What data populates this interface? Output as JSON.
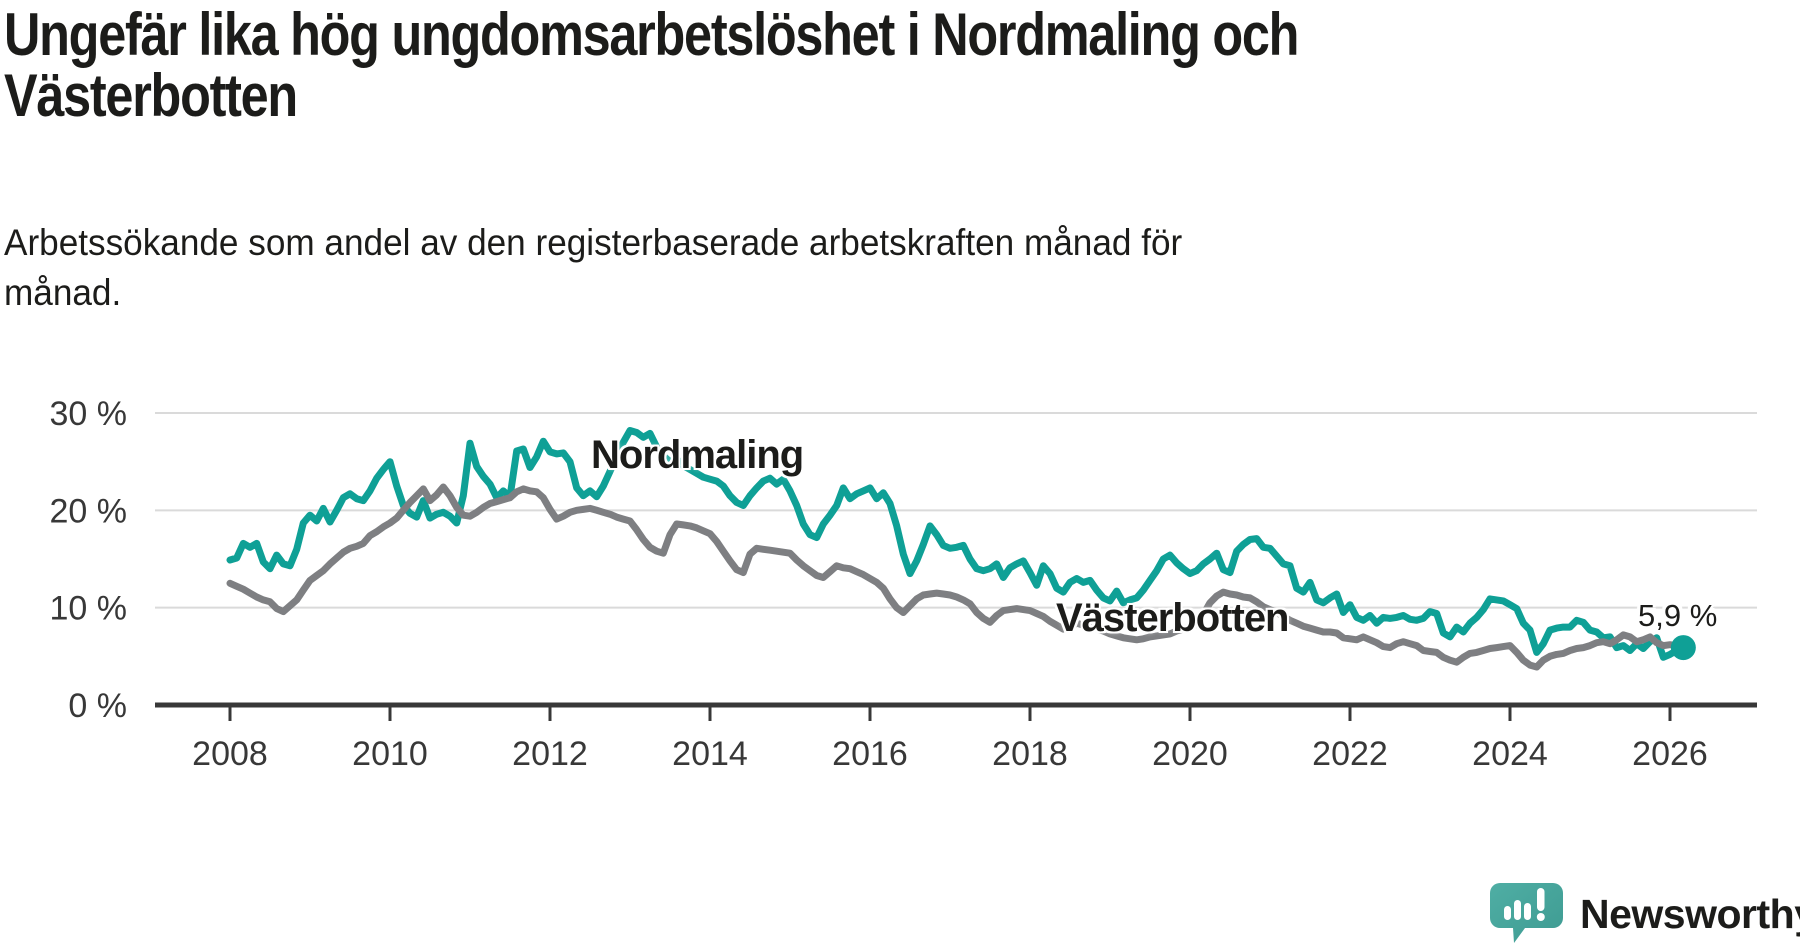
{
  "header": {
    "title_lines": [
      "Ungefär lika hög ungdomsarbetslöshet i Nordmaling och",
      "Västerbotten"
    ],
    "subtitle_lines": [
      "Arbetssökande som andel av den registerbaserade arbetskraften månad för",
      "månad."
    ]
  },
  "footer": {
    "brand": "Newsworthy",
    "brand_color": "#3FA099",
    "logo_icon": "newsworthy-speech-bubble-bar-chart-icon"
  },
  "chart_data": {
    "type": "line",
    "title": "Ungefär lika hög ungdomsarbetslöshet i Nordmaling och Västerbotten",
    "subtitle": "Arbetssökande som andel av den registerbaserade arbetskraften månad för månad.",
    "unit": "percent",
    "frequency": "monthly",
    "x_axis": {
      "ticks": [
        "2008",
        "2010",
        "2012",
        "2014",
        "2016",
        "2018",
        "2020",
        "2022",
        "2024",
        "2026"
      ],
      "tick_values": [
        2008,
        2010,
        2012,
        2014,
        2016,
        2018,
        2020,
        2022,
        2024,
        2026
      ]
    },
    "y_axis": {
      "tick_labels": [
        "30 %",
        "20 %",
        "10 %",
        "0 %"
      ],
      "tick_values": [
        30,
        20,
        10,
        0
      ],
      "min": 0,
      "max": 30
    },
    "grid": "horizontal",
    "legend_position": "inline-labels",
    "colors": {
      "accent_teal": "#0FA096",
      "neutral_gray": "#7E7F82",
      "gridline": "#DADADA",
      "axis": "#383838",
      "text": "#383838"
    },
    "end_label": {
      "text": "5,9 %",
      "series": "Nordmaling",
      "value": 5.9,
      "x": 2026.17
    },
    "series": [
      {
        "name": "Nordmaling",
        "color": "#0FA096",
        "start_year": 2008,
        "start_month": 1,
        "end_dot": true,
        "values": [
          14.9,
          15.1,
          16.6,
          16.2,
          16.6,
          14.7,
          14.0,
          15.4,
          14.5,
          14.3,
          16.0,
          18.7,
          19.5,
          18.9,
          20.2,
          18.8,
          20.0,
          21.3,
          21.7,
          21.2,
          21.0,
          22.0,
          23.3,
          24.2,
          25.0,
          22.5,
          20.5,
          19.7,
          19.3,
          21.0,
          19.2,
          19.6,
          19.8,
          19.4,
          18.7,
          21.5,
          26.9,
          24.5,
          23.5,
          22.7,
          21.3,
          22.0,
          21.4,
          26.1,
          26.3,
          24.4,
          25.5,
          27.1,
          26.0,
          25.8,
          25.9,
          25.0,
          22.3,
          21.5,
          22.0,
          21.4,
          22.5,
          24.0,
          25.5,
          27.0,
          28.2,
          28.0,
          27.5,
          27.9,
          26.5,
          25.6,
          25.0,
          25.3,
          24.6,
          24.2,
          23.8,
          23.4,
          23.2,
          23.0,
          22.5,
          21.5,
          20.8,
          20.5,
          21.5,
          22.3,
          23.0,
          23.3,
          22.7,
          23.2,
          22.0,
          20.5,
          18.6,
          17.5,
          17.2,
          18.6,
          19.5,
          20.5,
          22.3,
          21.2,
          21.7,
          22.0,
          22.3,
          21.2,
          21.8,
          20.7,
          18.4,
          15.5,
          13.5,
          14.8,
          16.5,
          18.4,
          17.5,
          16.4,
          16.1,
          16.2,
          16.4,
          15.0,
          14.0,
          13.8,
          14.0,
          14.5,
          13.1,
          14.1,
          14.5,
          14.8,
          13.6,
          12.3,
          14.3,
          13.5,
          12.0,
          11.6,
          12.6,
          13.0,
          12.6,
          12.8,
          11.8,
          11.0,
          10.7,
          11.7,
          10.5,
          10.8,
          11.0,
          11.8,
          12.8,
          13.8,
          15.0,
          15.4,
          14.6,
          14.0,
          13.5,
          13.8,
          14.5,
          15.0,
          15.6,
          13.9,
          13.6,
          15.8,
          16.5,
          17.0,
          17.1,
          16.2,
          16.1,
          15.3,
          14.5,
          14.3,
          12.0,
          11.6,
          12.6,
          10.8,
          10.5,
          11.0,
          11.4,
          9.5,
          10.3,
          9.0,
          8.7,
          9.2,
          8.4,
          9.0,
          8.9,
          9.0,
          9.2,
          8.8,
          8.7,
          8.9,
          9.6,
          9.4,
          7.4,
          7.0,
          8.0,
          7.5,
          8.4,
          9.0,
          9.8,
          10.9,
          10.8,
          10.7,
          10.3,
          9.9,
          8.4,
          7.7,
          5.4,
          6.3,
          7.7,
          7.9,
          8.0,
          8.0,
          8.7,
          8.5,
          7.7,
          7.5,
          6.9,
          7.0,
          5.9,
          6.1,
          5.6,
          6.3,
          5.8,
          6.5,
          6.9,
          4.9,
          5.2,
          5.6,
          5.9
        ]
      },
      {
        "name": "Västerbotten",
        "color": "#7E7F82",
        "start_year": 2008,
        "start_month": 1,
        "end_dot": false,
        "values": [
          12.5,
          12.2,
          11.9,
          11.5,
          11.1,
          10.8,
          10.6,
          9.9,
          9.6,
          10.2,
          10.8,
          11.8,
          12.8,
          13.3,
          13.8,
          14.5,
          15.1,
          15.7,
          16.1,
          16.3,
          16.6,
          17.4,
          17.8,
          18.3,
          18.7,
          19.2,
          20.0,
          20.8,
          21.5,
          22.2,
          21.0,
          21.6,
          22.4,
          21.5,
          20.3,
          19.5,
          19.4,
          19.8,
          20.3,
          20.7,
          20.9,
          21.1,
          21.3,
          21.9,
          22.2,
          22.0,
          21.9,
          21.3,
          20.1,
          19.1,
          19.4,
          19.8,
          20.0,
          20.1,
          20.2,
          20.0,
          19.8,
          19.6,
          19.3,
          19.1,
          18.9,
          18.0,
          17.0,
          16.2,
          15.8,
          15.6,
          17.5,
          18.6,
          18.5,
          18.4,
          18.2,
          17.9,
          17.6,
          16.8,
          15.8,
          14.8,
          13.9,
          13.6,
          15.5,
          16.1,
          16.0,
          15.9,
          15.8,
          15.7,
          15.6,
          14.9,
          14.3,
          13.8,
          13.3,
          13.1,
          13.7,
          14.3,
          14.1,
          14.0,
          13.7,
          13.4,
          13.0,
          12.6,
          12.0,
          10.9,
          10.0,
          9.5,
          10.2,
          10.9,
          11.3,
          11.4,
          11.5,
          11.4,
          11.3,
          11.1,
          10.8,
          10.4,
          9.5,
          8.9,
          8.5,
          9.2,
          9.7,
          9.8,
          9.9,
          9.8,
          9.7,
          9.4,
          9.1,
          8.6,
          8.2,
          7.8,
          8.0,
          8.4,
          8.2,
          8.0,
          7.8,
          7.6,
          7.3,
          7.1,
          6.9,
          6.8,
          6.7,
          6.8,
          7.0,
          7.1,
          7.2,
          7.3,
          7.6,
          7.8,
          8.0,
          8.3,
          9.3,
          10.5,
          11.2,
          11.6,
          11.4,
          11.3,
          11.1,
          11.0,
          10.6,
          10.1,
          9.8,
          9.5,
          9.1,
          8.7,
          8.4,
          8.1,
          7.9,
          7.7,
          7.5,
          7.5,
          7.4,
          6.9,
          6.8,
          6.7,
          7.0,
          6.7,
          6.4,
          6.0,
          5.9,
          6.3,
          6.5,
          6.3,
          6.1,
          5.6,
          5.5,
          5.4,
          4.9,
          4.6,
          4.4,
          4.9,
          5.3,
          5.4,
          5.6,
          5.8,
          5.9,
          6.0,
          6.1,
          5.4,
          4.6,
          4.1,
          3.9,
          4.6,
          5.0,
          5.2,
          5.3,
          5.6,
          5.8,
          5.9,
          6.1,
          6.4,
          6.5,
          6.3,
          6.7,
          7.2,
          7.0,
          6.5,
          6.7,
          7.0,
          6.4,
          6.1,
          6.2,
          6.1,
          6.1
        ]
      }
    ]
  }
}
